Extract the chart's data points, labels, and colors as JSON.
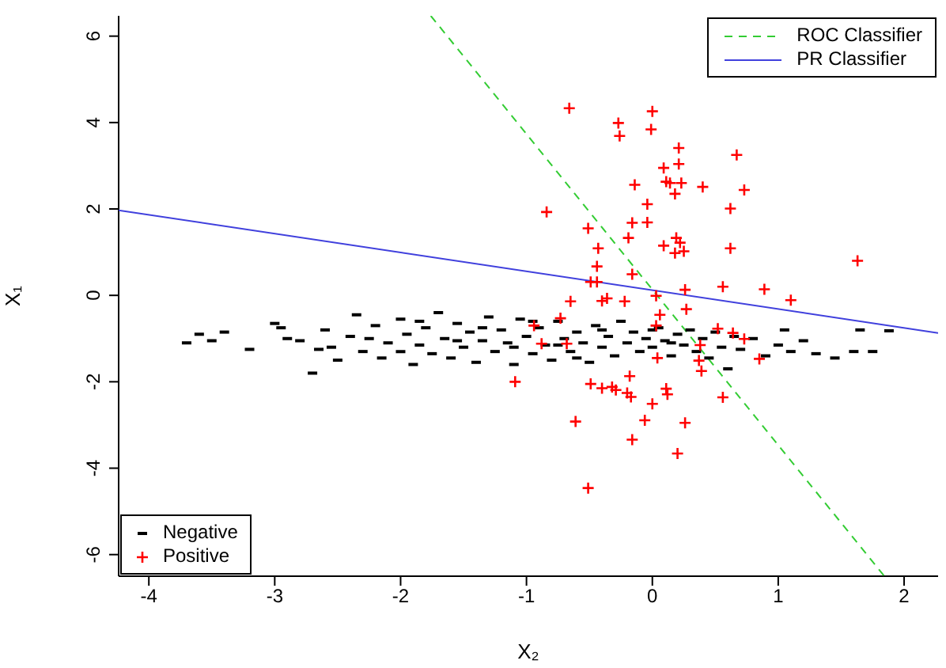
{
  "chart_data": {
    "type": "scatter",
    "xlabel": "X₂",
    "ylabel": "X₁",
    "xlim": [
      -4.24,
      2.27
    ],
    "ylim": [
      -6.5,
      6.47
    ],
    "xticks": [
      -4,
      -3,
      -2,
      -1,
      0,
      1,
      2
    ],
    "yticks": [
      -6,
      -4,
      -2,
      0,
      2,
      4,
      6
    ],
    "legend": "top right",
    "series": [
      {
        "name": "Negative",
        "color": "#000000",
        "x": [
          -3.7,
          -3.6,
          -3.5,
          -3.4,
          -3.2,
          -3.0,
          -2.95,
          -2.9,
          -2.8,
          -2.7,
          -2.6,
          -2.55,
          -2.5,
          -2.4,
          -2.35,
          -2.3,
          -2.2,
          -2.15,
          -2.1,
          -2.0,
          -2.0,
          -1.95,
          -1.9,
          -1.85,
          -1.8,
          -1.75,
          -1.7,
          -1.65,
          -1.6,
          -1.55,
          -1.5,
          -1.45,
          -1.4,
          -1.35,
          -1.3,
          -1.25,
          -1.2,
          -1.15,
          -1.1,
          -1.05,
          -1.0,
          -0.95,
          -0.9,
          -0.85,
          -0.8,
          -0.75,
          -0.7,
          -0.65,
          -0.6,
          -0.55,
          -0.5,
          -0.45,
          -0.4,
          -0.35,
          -0.3,
          -0.25,
          -0.2,
          -0.15,
          -0.1,
          -0.05,
          0.0,
          0.05,
          0.1,
          0.15,
          0.2,
          0.25,
          0.3,
          0.35,
          0.4,
          0.45,
          0.5,
          0.55,
          0.6,
          0.65,
          0.7,
          0.8,
          0.9,
          1.0,
          1.05,
          1.1,
          1.2,
          1.3,
          1.45,
          1.6,
          1.65,
          1.75,
          1.88,
          -1.85,
          -1.55,
          -1.1,
          -0.75,
          -0.4,
          0.0,
          -2.25,
          -1.35,
          -0.6,
          0.15,
          -0.95,
          -2.65
        ],
        "values": [
          -1.1,
          -0.9,
          -1.05,
          -0.85,
          -1.25,
          -0.65,
          -0.75,
          -1.0,
          -1.05,
          -1.8,
          -0.8,
          -1.2,
          -1.5,
          -0.95,
          -0.45,
          -1.3,
          -0.7,
          -1.45,
          -1.1,
          -0.55,
          -1.3,
          -0.9,
          -1.6,
          -1.15,
          -0.75,
          -1.35,
          -0.4,
          -1.0,
          -1.45,
          -0.65,
          -1.2,
          -0.85,
          -1.55,
          -1.05,
          -0.5,
          -1.3,
          -0.8,
          -1.1,
          -1.6,
          -0.55,
          -0.95,
          -1.35,
          -0.75,
          -1.15,
          -1.5,
          -0.6,
          -1.0,
          -1.3,
          -0.85,
          -1.1,
          -1.55,
          -0.7,
          -1.2,
          -0.95,
          -1.4,
          -0.6,
          -1.1,
          -0.85,
          -1.3,
          -1.0,
          -1.2,
          -0.75,
          -1.05,
          -1.4,
          -0.9,
          -1.15,
          -0.8,
          -1.3,
          -1.0,
          -1.45,
          -0.85,
          -1.2,
          -1.7,
          -0.95,
          -1.25,
          -1.0,
          -1.4,
          -1.15,
          -0.8,
          -1.3,
          -1.05,
          -1.35,
          -1.45,
          -1.3,
          -0.8,
          -1.3,
          -0.82,
          -0.6,
          -1.05,
          -1.2,
          -1.15,
          -0.8,
          -0.8,
          -1.0,
          -0.75,
          -1.45,
          -1.1,
          -0.6,
          -1.25
        ]
      },
      {
        "name": "Positive",
        "color": "#ff0000",
        "marker": "cross",
        "x": [
          -0.66,
          -0.27,
          -0.26,
          0.0,
          -0.01,
          0.21,
          0.09,
          0.21,
          0.67,
          -0.14,
          0.11,
          0.14,
          0.23,
          0.4,
          0.73,
          0.18,
          -0.04,
          -0.84,
          0.62,
          -0.51,
          -0.16,
          -0.04,
          -0.19,
          0.19,
          0.22,
          -0.43,
          0.09,
          0.18,
          0.25,
          0.62,
          1.63,
          -0.44,
          -0.16,
          -0.49,
          -0.44,
          0.26,
          0.56,
          0.89,
          -0.65,
          -0.4,
          -0.36,
          -0.22,
          0.03,
          1.1,
          0.27,
          -0.73,
          0.06,
          -0.94,
          0.03,
          0.52,
          0.64,
          0.73,
          -0.88,
          -0.68,
          0.38,
          0.37,
          0.85,
          0.04,
          0.39,
          -1.09,
          -0.18,
          -0.49,
          -0.4,
          -0.32,
          -0.29,
          -0.2,
          -0.17,
          0.11,
          0.12,
          0.56,
          0.0,
          -0.61,
          -0.06,
          0.26,
          -0.16,
          0.2,
          -0.51
        ],
        "values": [
          4.33,
          3.99,
          3.69,
          4.26,
          3.84,
          3.41,
          2.95,
          3.04,
          3.25,
          2.56,
          2.63,
          2.6,
          2.6,
          2.51,
          2.44,
          2.35,
          2.11,
          1.93,
          2.01,
          1.55,
          1.68,
          1.69,
          1.33,
          1.33,
          1.22,
          1.09,
          1.15,
          0.98,
          1.02,
          1.09,
          0.8,
          0.67,
          0.49,
          0.31,
          0.31,
          0.13,
          0.2,
          0.14,
          -0.14,
          -0.13,
          -0.07,
          -0.14,
          -0.01,
          -0.11,
          -0.32,
          -0.53,
          -0.45,
          -0.7,
          -0.7,
          -0.77,
          -0.87,
          -1.01,
          -1.12,
          -1.12,
          -1.15,
          -1.51,
          -1.47,
          -1.45,
          -1.75,
          -2.0,
          -1.87,
          -2.05,
          -2.15,
          -2.12,
          -2.19,
          -2.26,
          -2.35,
          -2.16,
          -2.29,
          -2.36,
          -2.51,
          -2.92,
          -2.89,
          -2.95,
          -3.34,
          -3.66,
          -4.46
        ]
      },
      {
        "name": "ROC Classifier",
        "type": "line",
        "color": "#33cc33",
        "line_style": "dashed",
        "x": [
          -1.76,
          1.84
        ],
        "values": [
          6.47,
          -6.49
        ]
      },
      {
        "name": "PR Classifier",
        "type": "line",
        "color": "#4040dd",
        "line_style": "solid",
        "x": [
          -4.24,
          2.27
        ],
        "values": [
          1.97,
          -0.87
        ]
      }
    ]
  }
}
